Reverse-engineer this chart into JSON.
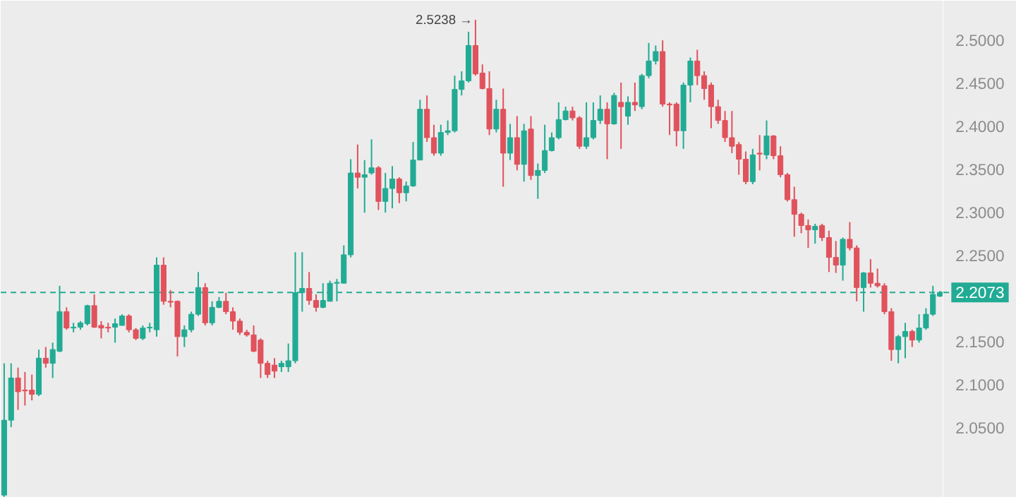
{
  "chart_data": {
    "type": "candlestick",
    "categories": [
      null,
      null,
      null,
      null,
      null,
      null,
      null,
      null,
      null,
      null,
      null,
      null,
      null,
      null,
      null,
      null,
      null,
      null,
      null,
      null,
      null,
      null,
      null,
      null,
      null,
      null,
      null,
      null,
      null,
      null,
      null,
      null,
      null,
      null,
      null,
      null,
      null,
      null,
      null,
      null,
      null,
      null,
      null,
      null,
      null,
      null,
      null,
      null,
      null,
      null,
      null,
      null,
      null,
      null,
      null,
      null,
      null,
      null,
      null,
      null,
      null,
      null,
      null,
      null,
      null,
      null,
      null,
      null,
      null,
      null,
      null,
      null,
      null,
      null,
      null,
      null,
      null,
      null,
      null,
      null,
      null,
      null,
      null,
      null,
      null,
      null,
      null,
      null,
      null,
      null,
      null,
      null,
      null,
      null,
      null,
      null,
      null,
      null,
      null,
      null,
      null,
      null,
      null,
      null,
      null,
      null,
      null,
      null,
      null,
      null,
      null,
      null,
      null,
      null,
      null,
      null,
      null,
      null,
      null,
      null,
      null,
      null,
      null,
      null,
      null,
      null,
      null,
      null,
      null,
      null,
      null,
      null,
      null,
      null,
      null,
      null
    ],
    "ohlc": [
      [
        1.972,
        2.125,
        1.97,
        2.059
      ],
      [
        2.059,
        2.125,
        2.051,
        2.108
      ],
      [
        2.108,
        2.12,
        2.071,
        2.092
      ],
      [
        2.094,
        2.115,
        2.076,
        2.093
      ],
      [
        2.094,
        2.112,
        2.082,
        2.089
      ],
      [
        2.089,
        2.141,
        2.087,
        2.131
      ],
      [
        2.131,
        2.144,
        2.12,
        2.125
      ],
      [
        2.125,
        2.149,
        2.108,
        2.141
      ],
      [
        2.139,
        2.215,
        2.138,
        2.185
      ],
      [
        2.185,
        2.19,
        2.164,
        2.166
      ],
      [
        2.166,
        2.172,
        2.161,
        2.167
      ],
      [
        2.167,
        2.174,
        2.164,
        2.172
      ],
      [
        2.171,
        2.193,
        2.169,
        2.192
      ],
      [
        2.192,
        2.205,
        2.166,
        2.167
      ],
      [
        2.169,
        2.174,
        2.154,
        2.166
      ],
      [
        2.167,
        2.172,
        2.161,
        2.166
      ],
      [
        2.167,
        2.177,
        2.149,
        2.171
      ],
      [
        2.169,
        2.182,
        2.169,
        2.18
      ],
      [
        2.18,
        2.182,
        2.161,
        2.164
      ],
      [
        2.164,
        2.166,
        2.152,
        2.154
      ],
      [
        2.154,
        2.169,
        2.152,
        2.166
      ],
      [
        2.166,
        2.172,
        2.161,
        2.167
      ],
      [
        2.164,
        2.248,
        2.156,
        2.239
      ],
      [
        2.239,
        2.248,
        2.193,
        2.197
      ],
      [
        2.197,
        2.21,
        2.19,
        2.196
      ],
      [
        2.197,
        2.198,
        2.133,
        2.156
      ],
      [
        2.156,
        2.169,
        2.144,
        2.164
      ],
      [
        2.164,
        2.185,
        2.161,
        2.182
      ],
      [
        2.182,
        2.231,
        2.18,
        2.213
      ],
      [
        2.213,
        2.218,
        2.169,
        2.172
      ],
      [
        2.172,
        2.197,
        2.169,
        2.19
      ],
      [
        2.19,
        2.202,
        2.189,
        2.197
      ],
      [
        2.197,
        2.207,
        2.182,
        2.185
      ],
      [
        2.185,
        2.19,
        2.164,
        2.174
      ],
      [
        2.174,
        2.177,
        2.158,
        2.161
      ],
      [
        2.161,
        2.164,
        2.156,
        2.158
      ],
      [
        2.158,
        2.169,
        2.138,
        2.139
      ],
      [
        2.152,
        2.154,
        2.108,
        2.125
      ],
      [
        2.125,
        2.128,
        2.108,
        2.112
      ],
      [
        2.123,
        2.131,
        2.108,
        2.116
      ],
      [
        2.121,
        2.128,
        2.115,
        2.125
      ],
      [
        2.121,
        2.148,
        2.115,
        2.128
      ],
      [
        2.128,
        2.254,
        2.125,
        2.207
      ],
      [
        2.207,
        2.254,
        2.185,
        2.212
      ],
      [
        2.212,
        2.231,
        2.193,
        2.198
      ],
      [
        2.198,
        2.205,
        2.185,
        2.19
      ],
      [
        2.19,
        2.218,
        2.189,
        2.198
      ],
      [
        2.197,
        2.221,
        2.197,
        2.218
      ],
      [
        2.218,
        2.223,
        2.197,
        2.219
      ],
      [
        2.218,
        2.262,
        2.218,
        2.251
      ],
      [
        2.251,
        2.362,
        2.248,
        2.346
      ],
      [
        2.346,
        2.379,
        2.328,
        2.341
      ],
      [
        2.341,
        2.361,
        2.3,
        2.344
      ],
      [
        2.346,
        2.385,
        2.344,
        2.352
      ],
      [
        2.352,
        2.354,
        2.303,
        2.313
      ],
      [
        2.313,
        2.346,
        2.3,
        2.328
      ],
      [
        2.328,
        2.354,
        2.305,
        2.339
      ],
      [
        2.339,
        2.341,
        2.311,
        2.323
      ],
      [
        2.323,
        2.336,
        2.313,
        2.331
      ],
      [
        2.331,
        2.382,
        2.33,
        2.361
      ],
      [
        2.361,
        2.431,
        2.361,
        2.42
      ],
      [
        2.42,
        2.436,
        2.382,
        2.387
      ],
      [
        2.387,
        2.402,
        2.366,
        2.369
      ],
      [
        2.369,
        2.402,
        2.366,
        2.393
      ],
      [
        2.393,
        2.407,
        2.39,
        2.395
      ],
      [
        2.395,
        2.459,
        2.393,
        2.443
      ],
      [
        2.443,
        2.464,
        2.436,
        2.453
      ],
      [
        2.453,
        2.51,
        2.451,
        2.494
      ],
      [
        2.494,
        2.5238,
        2.459,
        2.461
      ],
      [
        2.462,
        2.472,
        2.443,
        2.444
      ],
      [
        2.444,
        2.464,
        2.39,
        2.397
      ],
      [
        2.397,
        2.431,
        2.393,
        2.42
      ],
      [
        2.42,
        2.444,
        2.33,
        2.369
      ],
      [
        2.369,
        2.403,
        2.361,
        2.387
      ],
      [
        2.387,
        2.412,
        2.349,
        2.356
      ],
      [
        2.356,
        2.403,
        2.336,
        2.395
      ],
      [
        2.397,
        2.412,
        2.338,
        2.343
      ],
      [
        2.343,
        2.357,
        2.316,
        2.349
      ],
      [
        2.349,
        2.402,
        2.346,
        2.372
      ],
      [
        2.372,
        2.393,
        2.371,
        2.387
      ],
      [
        2.387,
        2.428,
        2.385,
        2.408
      ],
      [
        2.408,
        2.423,
        2.407,
        2.418
      ],
      [
        2.418,
        2.423,
        2.407,
        2.41
      ],
      [
        2.41,
        2.412,
        2.374,
        2.377
      ],
      [
        2.377,
        2.428,
        2.374,
        2.387
      ],
      [
        2.387,
        2.428,
        2.385,
        2.407
      ],
      [
        2.407,
        2.436,
        2.403,
        2.42
      ],
      [
        2.42,
        2.428,
        2.362,
        2.403
      ],
      [
        2.403,
        2.439,
        2.402,
        2.436
      ],
      [
        2.428,
        2.451,
        2.374,
        2.423
      ],
      [
        2.412,
        2.435,
        2.402,
        2.428
      ],
      [
        2.428,
        2.451,
        2.418,
        2.425
      ],
      [
        2.423,
        2.461,
        2.42,
        2.459
      ],
      [
        2.459,
        2.497,
        2.456,
        2.476
      ],
      [
        2.476,
        2.494,
        2.472,
        2.487
      ],
      [
        2.487,
        2.5,
        2.423,
        2.426
      ],
      [
        2.426,
        2.428,
        2.39,
        2.425
      ],
      [
        2.426,
        2.428,
        2.377,
        2.395
      ],
      [
        2.395,
        2.451,
        2.374,
        2.448
      ],
      [
        2.448,
        2.48,
        2.428,
        2.476
      ],
      [
        2.476,
        2.489,
        2.448,
        2.459
      ],
      [
        2.459,
        2.464,
        2.431,
        2.444
      ],
      [
        2.448,
        2.451,
        2.398,
        2.423
      ],
      [
        2.423,
        2.431,
        2.403,
        2.407
      ],
      [
        2.407,
        2.418,
        2.382,
        2.387
      ],
      [
        2.387,
        2.418,
        2.369,
        2.377
      ],
      [
        2.379,
        2.382,
        2.344,
        2.362
      ],
      [
        2.362,
        2.371,
        2.333,
        2.336
      ],
      [
        2.336,
        2.374,
        2.333,
        2.367
      ],
      [
        2.369,
        2.39,
        2.349,
        2.368
      ],
      [
        2.367,
        2.407,
        2.362,
        2.389
      ],
      [
        2.389,
        2.39,
        2.362,
        2.366
      ],
      [
        2.366,
        2.377,
        2.341,
        2.344
      ],
      [
        2.344,
        2.346,
        2.313,
        2.315
      ],
      [
        2.315,
        2.33,
        2.272,
        2.298
      ],
      [
        2.298,
        2.3,
        2.276,
        2.285
      ],
      [
        2.285,
        2.292,
        2.259,
        2.28
      ],
      [
        2.28,
        2.287,
        2.264,
        2.284
      ],
      [
        2.285,
        2.287,
        2.267,
        2.271
      ],
      [
        2.271,
        2.279,
        2.231,
        2.248
      ],
      [
        2.248,
        2.267,
        2.23,
        2.239
      ],
      [
        2.239,
        2.271,
        2.221,
        2.269
      ],
      [
        2.269,
        2.289,
        2.256,
        2.259
      ],
      [
        2.259,
        2.262,
        2.197,
        2.213
      ],
      [
        2.213,
        2.231,
        2.185,
        2.23
      ],
      [
        2.23,
        2.246,
        2.213,
        2.218
      ],
      [
        2.218,
        2.235,
        2.213,
        2.215
      ],
      [
        2.215,
        2.218,
        2.182,
        2.185
      ],
      [
        2.185,
        2.189,
        2.128,
        2.141
      ],
      [
        2.141,
        2.158,
        2.125,
        2.156
      ],
      [
        2.156,
        2.172,
        2.131,
        2.162
      ],
      [
        2.162,
        2.164,
        2.144,
        2.152
      ],
      [
        2.152,
        2.182,
        2.149,
        2.166
      ],
      [
        2.166,
        2.189,
        2.164,
        2.182
      ],
      [
        2.182,
        2.215,
        2.18,
        2.205
      ],
      [
        2.203,
        2.209,
        2.202,
        2.2073
      ]
    ],
    "colors": [
      "#22ab94",
      "#22ab94",
      "#e0525c",
      "#e0525c",
      "#e0525c",
      "#22ab94",
      "#e0525c",
      "#22ab94",
      "#22ab94",
      "#e0525c",
      "#22ab94",
      "#22ab94",
      "#22ab94",
      "#e0525c",
      "#e0525c",
      "#e0525c",
      "#22ab94",
      "#22ab94",
      "#e0525c",
      "#e0525c",
      "#22ab94",
      "#22ab94",
      "#22ab94",
      "#e0525c",
      "#e0525c",
      "#e0525c",
      "#22ab94",
      "#22ab94",
      "#22ab94",
      "#e0525c",
      "#22ab94",
      "#22ab94",
      "#e0525c",
      "#e0525c",
      "#e0525c",
      "#e0525c",
      "#e0525c",
      "#e0525c",
      "#e0525c",
      "#e0525c",
      "#22ab94",
      "#22ab94",
      "#22ab94",
      "#22ab94",
      "#e0525c",
      "#e0525c",
      "#22ab94",
      "#22ab94",
      "#22ab94",
      "#22ab94",
      "#22ab94",
      "#e0525c",
      "#22ab94",
      "#22ab94",
      "#e0525c",
      "#22ab94",
      "#22ab94",
      "#e0525c",
      "#22ab94",
      "#22ab94",
      "#22ab94",
      "#e0525c",
      "#e0525c",
      "#22ab94",
      "#22ab94",
      "#22ab94",
      "#22ab94",
      "#22ab94",
      "#e0525c",
      "#e0525c",
      "#e0525c",
      "#22ab94",
      "#e0525c",
      "#22ab94",
      "#e0525c",
      "#22ab94",
      "#e0525c",
      "#22ab94",
      "#22ab94",
      "#22ab94",
      "#22ab94",
      "#22ab94",
      "#e0525c",
      "#e0525c",
      "#22ab94",
      "#22ab94",
      "#22ab94",
      "#e0525c",
      "#22ab94",
      "#e0525c",
      "#22ab94",
      "#e0525c",
      "#22ab94",
      "#22ab94",
      "#22ab94",
      "#e0525c",
      "#e0525c",
      "#e0525c",
      "#22ab94",
      "#22ab94",
      "#e0525c",
      "#e0525c",
      "#e0525c",
      "#e0525c",
      "#e0525c",
      "#e0525c",
      "#e0525c",
      "#e0525c",
      "#22ab94",
      "#e0525c",
      "#22ab94",
      "#e0525c",
      "#e0525c",
      "#e0525c",
      "#e0525c",
      "#e0525c",
      "#e0525c",
      "#22ab94",
      "#e0525c",
      "#e0525c",
      "#e0525c",
      "#22ab94",
      "#e0525c",
      "#e0525c",
      "#22ab94",
      "#e0525c",
      "#e0525c",
      "#e0525c",
      "#e0525c",
      "#22ab94",
      "#22ab94",
      "#e0525c",
      "#22ab94",
      "#22ab94",
      "#22ab94",
      "#22ab94"
    ],
    "ylim": [
      1.969,
      2.546
    ],
    "yticks": [
      {
        "value": 2.05,
        "label": "2.0500"
      },
      {
        "value": 2.1,
        "label": "2.1000"
      },
      {
        "value": 2.15,
        "label": "2.1500"
      },
      {
        "value": 2.25,
        "label": "2.2500"
      },
      {
        "value": 2.3,
        "label": "2.3000"
      },
      {
        "value": 2.35,
        "label": "2.3500"
      },
      {
        "value": 2.4,
        "label": "2.4000"
      },
      {
        "value": 2.45,
        "label": "2.4500"
      },
      {
        "value": 2.5,
        "label": "2.5000"
      }
    ],
    "tick_labels": "y",
    "grid": false,
    "ref_lines": [
      {
        "axis": "y",
        "value": 2.2073,
        "label": "2.2073",
        "color": "#22ab94",
        "line_style": "dashed"
      }
    ],
    "annotations": [
      "2.5238 →"
    ]
  }
}
